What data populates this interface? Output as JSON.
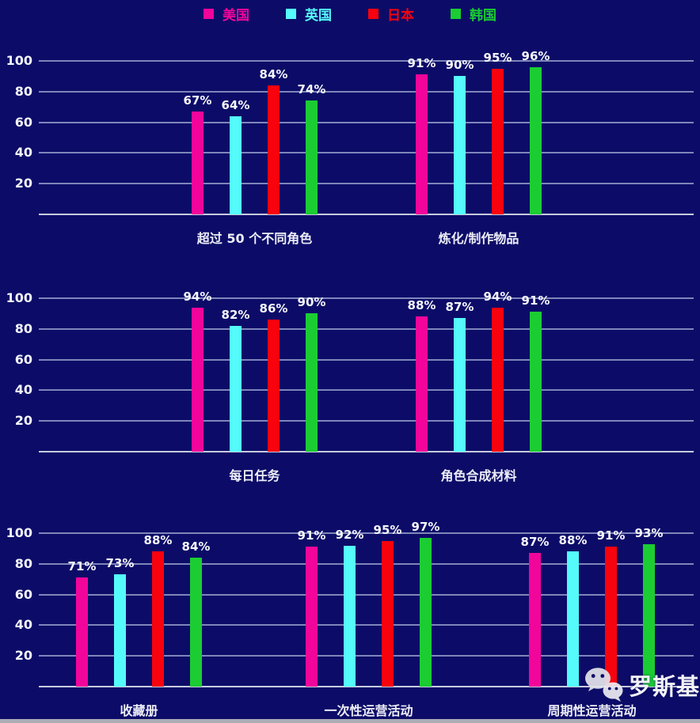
{
  "page": {
    "background": "#0C0C68",
    "gridline_color": "#7E86BA",
    "baseline_color": "#C7CBDE"
  },
  "legend": {
    "position": "top-center",
    "items": [
      {
        "label": "美国",
        "color": "#F2059B"
      },
      {
        "label": "英国",
        "color": "#55FAFA"
      },
      {
        "label": "日本",
        "color": "#F8020E"
      },
      {
        "label": "韩国",
        "color": "#1BCD33"
      }
    ]
  },
  "chart_data": [
    {
      "type": "bar",
      "title": "",
      "categories": [
        "超过 50 个不同角色",
        "炼化/制作物品"
      ],
      "series": [
        {
          "name": "美国",
          "color": "#F2059B",
          "values": [
            67,
            91
          ]
        },
        {
          "name": "英国",
          "color": "#55FAFA",
          "values": [
            64,
            90
          ]
        },
        {
          "name": "日本",
          "color": "#F8020E",
          "values": [
            84,
            95
          ]
        },
        {
          "name": "韩国",
          "color": "#1BCD33",
          "values": [
            74,
            96
          ]
        }
      ],
      "xlabel": "",
      "ylabel": "",
      "ylim": [
        0,
        100
      ],
      "yticks": [
        20,
        40,
        60,
        80,
        100
      ],
      "value_suffix": "%",
      "grid": true
    },
    {
      "type": "bar",
      "title": "",
      "categories": [
        "每日任务",
        "角色合成材料"
      ],
      "series": [
        {
          "name": "美国",
          "color": "#F2059B",
          "values": [
            94,
            88
          ]
        },
        {
          "name": "英国",
          "color": "#55FAFA",
          "values": [
            82,
            87
          ]
        },
        {
          "name": "日本",
          "color": "#F8020E",
          "values": [
            86,
            94
          ]
        },
        {
          "name": "韩国",
          "color": "#1BCD33",
          "values": [
            90,
            91
          ]
        }
      ],
      "xlabel": "",
      "ylabel": "",
      "ylim": [
        0,
        100
      ],
      "yticks": [
        20,
        40,
        60,
        80,
        100
      ],
      "value_suffix": "%",
      "grid": true
    },
    {
      "type": "bar",
      "title": "",
      "categories": [
        "收藏册",
        "一次性运营活动",
        "周期性运营活动"
      ],
      "series": [
        {
          "name": "美国",
          "color": "#F2059B",
          "values": [
            71,
            91,
            87
          ]
        },
        {
          "name": "英国",
          "color": "#55FAFA",
          "values": [
            73,
            92,
            88
          ]
        },
        {
          "name": "日本",
          "color": "#F8020E",
          "values": [
            88,
            95,
            91
          ]
        },
        {
          "name": "韩国",
          "color": "#1BCD33",
          "values": [
            84,
            97,
            93
          ]
        }
      ],
      "xlabel": "",
      "ylabel": "",
      "ylim": [
        0,
        100
      ],
      "yticks": [
        20,
        40,
        60,
        80,
        100
      ],
      "value_suffix": "%",
      "grid": true
    }
  ],
  "watermark": {
    "text": "罗斯基",
    "icon": "wechat-icon"
  }
}
